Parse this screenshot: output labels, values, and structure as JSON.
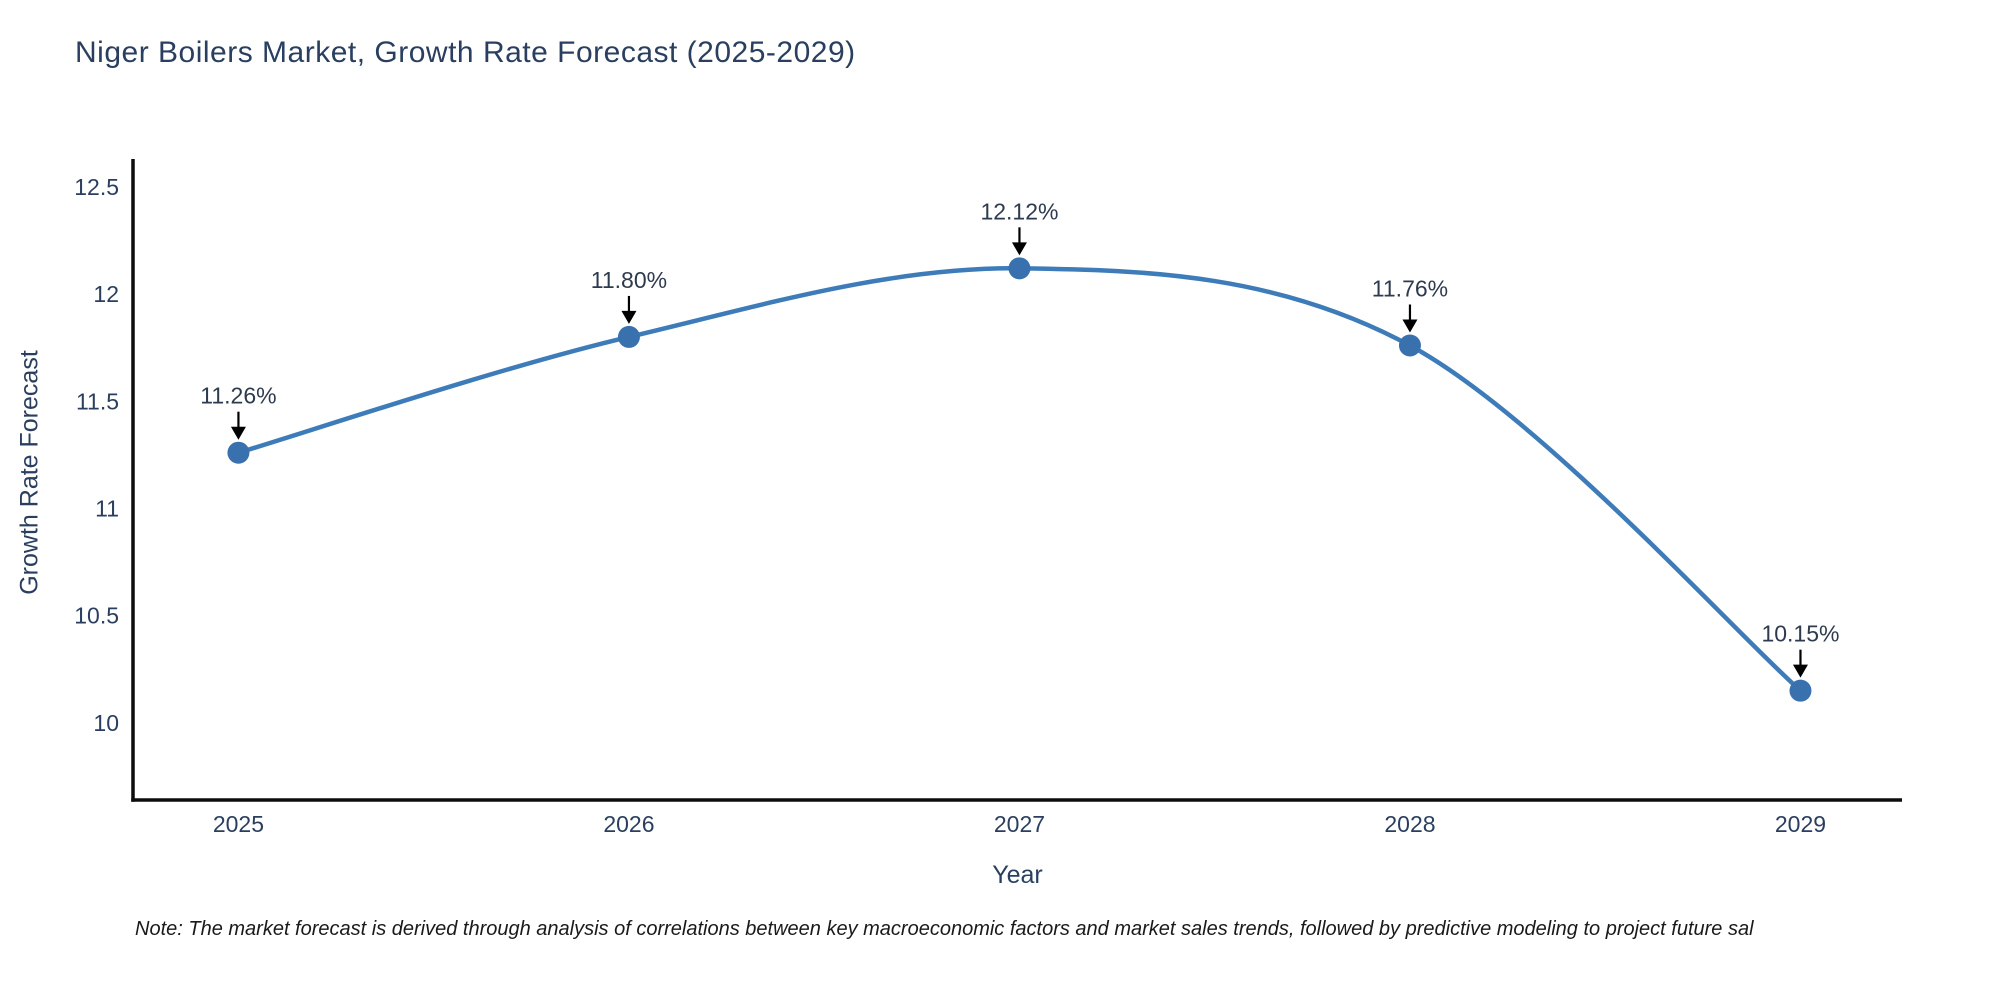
{
  "title": "Niger Boilers Market, Growth Rate Forecast (2025-2029)",
  "note": "Note: The market forecast is derived through analysis of correlations between key macroeconomic factors and market sales trends, followed by predictive modeling to project future sal",
  "chart_data": {
    "type": "line",
    "title": "Niger Boilers Market, Growth Rate Forecast (2025-2029)",
    "xlabel": "Year",
    "ylabel": "Growth Rate Forecast",
    "x": [
      2025,
      2026,
      2027,
      2028,
      2029
    ],
    "series": [
      {
        "name": "Growth Rate Forecast",
        "values": [
          11.26,
          11.8,
          12.12,
          11.76,
          10.15
        ],
        "point_labels": [
          "11.26%",
          "11.80%",
          "12.12%",
          "11.76%",
          "10.15%"
        ]
      }
    ],
    "x_tick_labels": [
      "2025",
      "2026",
      "2027",
      "2028",
      "2029"
    ],
    "y_ticks": [
      10,
      10.5,
      11,
      11.5,
      12,
      12.5
    ],
    "y_tick_labels": [
      "10",
      "10.5",
      "11",
      "11.5",
      "12",
      "12.5"
    ],
    "x_range": [
      2024.73,
      2029.26
    ],
    "y_range": [
      9.64,
      12.63
    ],
    "line_shape": "spline",
    "grid": false,
    "legend_position": "none",
    "annotation_arrows": true,
    "colors": {
      "line": "#3e7cb9",
      "marker": "#3871ad",
      "axis": "#0d0d0d",
      "text": "#2a3f5f",
      "annotation_text": "#2e3b4e",
      "note_text": "#1a1a1a",
      "background": "#ffffff"
    }
  }
}
